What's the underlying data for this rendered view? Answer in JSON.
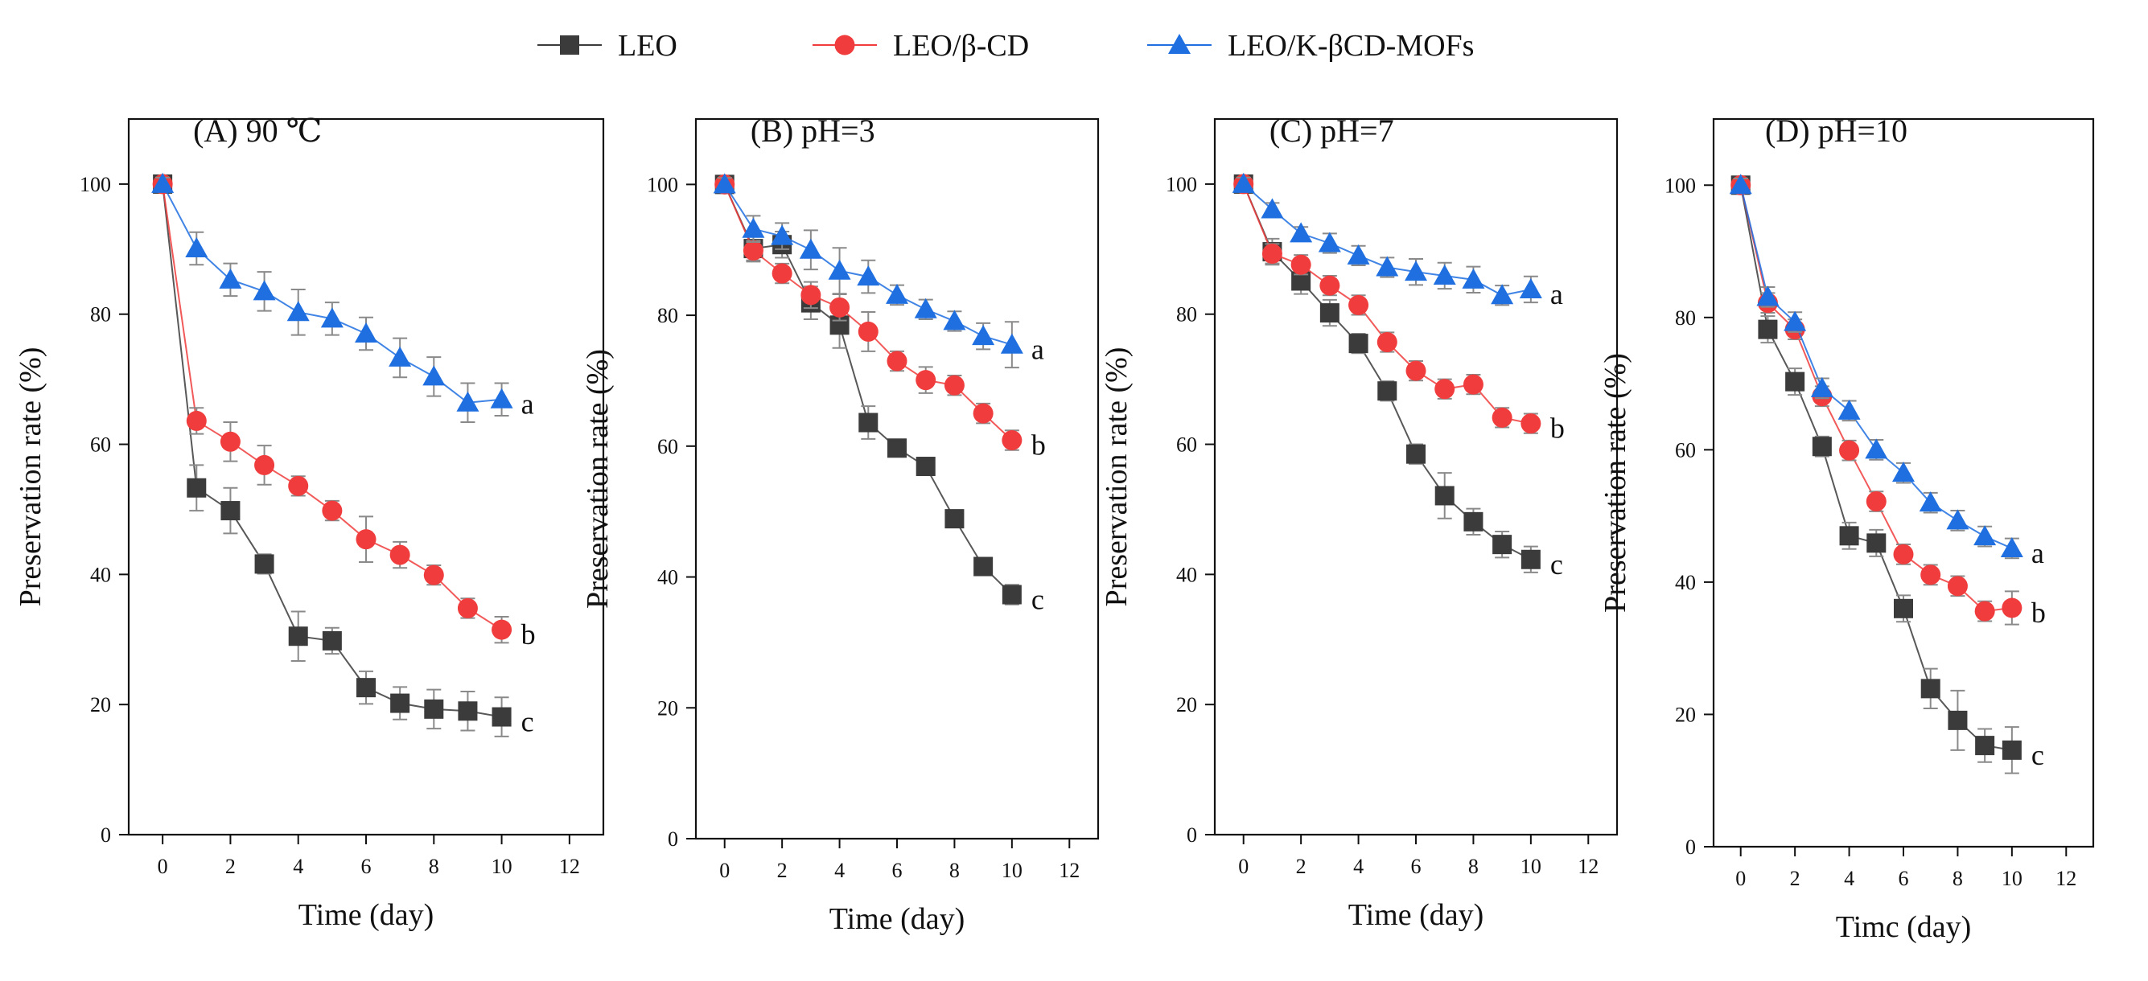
{
  "legend": [
    {
      "name": "LEO",
      "color": "#3b3b3b",
      "marker": "square"
    },
    {
      "name": "LEO/β-CD",
      "color": "#f03c3c",
      "marker": "circle"
    },
    {
      "name": "LEO/K-βCD-MOFs",
      "color": "#1f6fe0",
      "marker": "triangle"
    }
  ],
  "colors": {
    "LEO": "#3b3b3b",
    "LEO/β-CD": "#f03c3c",
    "LEO/K-βCD-MOFs": "#1f6fe0",
    "errorbar": "#8a8a8a",
    "axis": "#111111"
  },
  "chart_data": [
    {
      "type": "line",
      "title": "(A) 90 ℃",
      "xlabel": "Time (day)",
      "ylabel": "Preservation rate (%)",
      "xlim": [
        -1,
        13
      ],
      "ylim": [
        0,
        110
      ],
      "xticks": [
        0,
        2,
        4,
        6,
        8,
        10,
        12
      ],
      "yticks": [
        0,
        20,
        40,
        60,
        80,
        100
      ],
      "x": [
        0,
        1,
        2,
        3,
        4,
        5,
        6,
        7,
        8,
        9,
        10
      ],
      "series": [
        {
          "name": "LEO",
          "values": [
            100,
            53.3,
            49.8,
            41.6,
            30.5,
            29.8,
            22.6,
            20.2,
            19.3,
            19.0,
            18.1
          ],
          "errors": [
            1,
            3.5,
            3.5,
            1.5,
            3.8,
            2,
            2.5,
            2.5,
            3,
            3,
            3
          ],
          "letter": "c"
        },
        {
          "name": "LEO/β-CD",
          "values": [
            100,
            63.6,
            60.4,
            56.8,
            53.6,
            49.8,
            45.4,
            43.0,
            39.9,
            34.8,
            31.5
          ],
          "errors": [
            1,
            2,
            3,
            3,
            1.5,
            1.5,
            3.5,
            2,
            1.5,
            1.5,
            2
          ],
          "letter": "b"
        },
        {
          "name": "LEO/K-βCD-MOFs",
          "values": [
            100,
            90.1,
            85.3,
            83.5,
            80.3,
            79.3,
            77.0,
            73.3,
            70.4,
            66.4,
            66.9
          ],
          "errors": [
            1,
            2.5,
            2.5,
            3,
            3.5,
            2.5,
            2.5,
            3,
            3,
            3,
            2.5
          ],
          "letter": "a"
        }
      ]
    },
    {
      "type": "line",
      "title": "(B) pH=3",
      "xlabel": "Time (day)",
      "ylabel": "Preservation rate (%)",
      "xlim": [
        -1,
        13
      ],
      "ylim": [
        0,
        110
      ],
      "xticks": [
        0,
        2,
        4,
        6,
        8,
        10,
        12
      ],
      "yticks": [
        0,
        20,
        40,
        60,
        80,
        100
      ],
      "x": [
        0,
        1,
        2,
        3,
        4,
        5,
        6,
        7,
        8,
        9,
        10
      ],
      "series": [
        {
          "name": "LEO",
          "values": [
            100,
            90.2,
            90.8,
            81.9,
            78.5,
            63.6,
            59.7,
            56.9,
            48.9,
            41.6,
            37.3
          ],
          "errors": [
            1,
            2,
            2,
            2.5,
            3.5,
            2.5,
            1,
            1,
            1,
            1,
            1.5
          ],
          "letter": "c"
        },
        {
          "name": "LEO/β-CD",
          "values": [
            100,
            89.9,
            86.4,
            83.1,
            81.2,
            77.5,
            73.0,
            70.1,
            69.3,
            65.0,
            60.9
          ],
          "errors": [
            1,
            1.5,
            1.5,
            2,
            2,
            3,
            1.5,
            2,
            1.5,
            1.5,
            1.5
          ],
          "letter": "b"
        },
        {
          "name": "LEO/K-βCD-MOFs",
          "values": [
            100,
            93.2,
            92.1,
            90.0,
            86.8,
            85.9,
            83.1,
            80.9,
            79.1,
            76.8,
            75.5
          ],
          "errors": [
            1,
            2,
            2,
            3,
            3.5,
            2.5,
            1.5,
            1.5,
            1.5,
            2,
            3.5
          ],
          "letter": "a"
        }
      ]
    },
    {
      "type": "line",
      "title": "(C) pH=7",
      "xlabel": "Time (day)",
      "ylabel": "Preservation rate (%)",
      "xlim": [
        -1,
        13
      ],
      "ylim": [
        0,
        110
      ],
      "xticks": [
        0,
        2,
        4,
        6,
        8,
        10,
        12
      ],
      "yticks": [
        0,
        20,
        40,
        60,
        80,
        100
      ],
      "x": [
        0,
        1,
        2,
        3,
        4,
        5,
        6,
        7,
        8,
        9,
        10
      ],
      "series": [
        {
          "name": "LEO",
          "values": [
            100,
            89.6,
            85.1,
            80.2,
            75.5,
            68.2,
            58.5,
            52.1,
            48.1,
            44.6,
            42.3
          ],
          "errors": [
            1,
            2,
            2,
            2,
            1.5,
            1.5,
            1.5,
            3.5,
            2,
            2,
            2
          ],
          "letter": "c"
        },
        {
          "name": "LEO/β-CD",
          "values": [
            100,
            89.3,
            87.6,
            84.4,
            81.4,
            75.7,
            71.3,
            68.5,
            69.2,
            64.1,
            63.2
          ],
          "errors": [
            1,
            1.5,
            1.5,
            1.5,
            1.5,
            1.5,
            1.5,
            1.5,
            1.5,
            1.5,
            1.5
          ],
          "letter": "b"
        },
        {
          "name": "LEO/K-βCD-MOFs",
          "values": [
            100,
            96.1,
            92.4,
            90.9,
            89.0,
            87.2,
            86.5,
            85.9,
            85.3,
            82.9,
            83.8
          ],
          "errors": [
            1,
            1,
            1,
            1.5,
            1.5,
            1.5,
            2,
            2,
            2,
            1.5,
            2
          ],
          "letter": "a"
        }
      ]
    },
    {
      "type": "line",
      "title": "(D) pH=10",
      "xlabel": "Timc (day)",
      "ylabel": "Preservation rate (%)",
      "xlim": [
        -1,
        13
      ],
      "ylim": [
        0,
        110
      ],
      "xticks": [
        0,
        2,
        4,
        6,
        8,
        10,
        12
      ],
      "yticks": [
        0,
        20,
        40,
        60,
        80,
        100
      ],
      "x": [
        0,
        1,
        2,
        3,
        4,
        5,
        6,
        7,
        8,
        9,
        10
      ],
      "series": [
        {
          "name": "LEO",
          "values": [
            100,
            78.2,
            70.3,
            60.5,
            47.0,
            45.9,
            36.0,
            23.9,
            19.1,
            15.3,
            14.6
          ],
          "errors": [
            1,
            2,
            2,
            1.5,
            2,
            2,
            2,
            3,
            4.5,
            2.5,
            3.5
          ],
          "letter": "c"
        },
        {
          "name": "LEO/β-CD",
          "values": [
            100,
            82.2,
            78.2,
            68.1,
            59.9,
            52.2,
            44.2,
            41.1,
            39.4,
            35.6,
            36.1
          ],
          "errors": [
            1,
            1.5,
            1.5,
            1.5,
            1.5,
            1.5,
            1.5,
            1.5,
            1.5,
            1.5,
            2.5
          ],
          "letter": "b"
        },
        {
          "name": "LEO/K-βCD-MOFs",
          "values": [
            100,
            83.1,
            79.3,
            69.3,
            65.9,
            60.0,
            56.5,
            52.0,
            49.3,
            46.9,
            45.1
          ],
          "errors": [
            1,
            1.5,
            1.5,
            1.5,
            1.5,
            1.5,
            1.5,
            1.5,
            1.5,
            1.5,
            1.5
          ],
          "letter": "a"
        }
      ]
    }
  ]
}
